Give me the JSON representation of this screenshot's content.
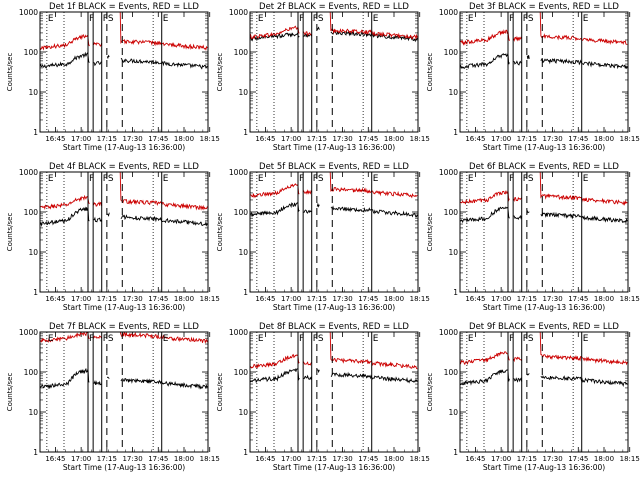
{
  "chart_data": [
    {
      "type": "line",
      "title": "Det 1f BLACK = Events, RED = LLD",
      "xlabel": "Start Time (17-Aug-13 16:36:00)",
      "ylabel": "Counts/sec",
      "yscale": "log",
      "ylim": [
        1,
        1000
      ],
      "xlim": [
        0,
        98
      ],
      "x_tick_labels": [
        "16:45",
        "17:00",
        "17:15",
        "17:30",
        "17:45",
        "18:00",
        "18:15"
      ],
      "y_tick_labels": [
        "1",
        "10",
        "100",
        "1000"
      ],
      "grid": false,
      "series": [
        {
          "name": "BLACK = Events",
          "color": "#000000",
          "base": 50,
          "peak": 85
        },
        {
          "name": "RED = LLD",
          "color": "#cc0000",
          "base": 150,
          "peak": 250
        }
      ],
      "markers": {
        "solid": [
          28,
          31,
          36,
          71
        ],
        "dotted": [
          4,
          14,
          66
        ],
        "dashed": [
          39,
          48
        ],
        "labels": [
          {
            "text": "E",
            "x": 4
          },
          {
            "text": "F",
            "x": 28
          },
          {
            "text": "F",
            "x": 36
          },
          {
            "text": "S",
            "x": 39
          },
          {
            "text": "E",
            "x": 71
          }
        ]
      }
    },
    {
      "type": "line",
      "title": "Det 2f BLACK = Events, RED = LLD",
      "xlabel": "Start Time (17-Aug-13 16:36:00)",
      "ylabel": "Counts/sec",
      "yscale": "log",
      "ylim": [
        1,
        1000
      ],
      "xlim": [
        0,
        98
      ],
      "x_tick_labels": [
        "16:45",
        "17:00",
        "17:15",
        "17:30",
        "17:45",
        "18:00",
        "18:15"
      ],
      "y_tick_labels": [
        "1",
        "10",
        "100",
        "1000"
      ],
      "grid": false,
      "series": [
        {
          "name": "BLACK = Events",
          "color": "#000000",
          "base": 250,
          "peak": 280
        },
        {
          "name": "RED = LLD",
          "color": "#cc0000",
          "base": 280,
          "peak": 400
        }
      ],
      "markers": {
        "solid": [
          28,
          31,
          36,
          71
        ],
        "dotted": [
          4,
          14,
          66
        ],
        "dashed": [
          39,
          48
        ],
        "labels": [
          {
            "text": "E",
            "x": 4
          },
          {
            "text": "F",
            "x": 28
          },
          {
            "text": "F",
            "x": 36
          },
          {
            "text": "S",
            "x": 39
          },
          {
            "text": "E",
            "x": 71
          }
        ]
      }
    },
    {
      "type": "line",
      "title": "Det 3f BLACK = Events, RED = LLD",
      "xlabel": "Start Time (17-Aug-13 16:36:00)",
      "ylabel": "Counts/sec",
      "yscale": "log",
      "ylim": [
        1,
        1000
      ],
      "xlim": [
        0,
        98
      ],
      "x_tick_labels": [
        "16:45",
        "17:00",
        "17:15",
        "17:30",
        "17:45",
        "18:00",
        "18:15"
      ],
      "y_tick_labels": [
        "1",
        "10",
        "100",
        "1000"
      ],
      "grid": false,
      "series": [
        {
          "name": "BLACK = Events",
          "color": "#000000",
          "base": 50,
          "peak": 85
        },
        {
          "name": "RED = LLD",
          "color": "#cc0000",
          "base": 200,
          "peak": 320
        }
      ],
      "markers": {
        "solid": [
          28,
          31,
          36,
          71
        ],
        "dotted": [
          4,
          14,
          66
        ],
        "dashed": [
          39,
          48
        ],
        "labels": [
          {
            "text": "E",
            "x": 4
          },
          {
            "text": "F",
            "x": 28
          },
          {
            "text": "F",
            "x": 36
          },
          {
            "text": "S",
            "x": 39
          },
          {
            "text": "E",
            "x": 71
          }
        ]
      }
    },
    {
      "type": "line",
      "title": "Det 4f BLACK = Events, RED = LLD",
      "xlabel": "Start Time (17-Aug-13 16:36:00)",
      "ylabel": "Counts/sec",
      "yscale": "log",
      "ylim": [
        1,
        1000
      ],
      "xlim": [
        0,
        98
      ],
      "x_tick_labels": [
        "16:45",
        "17:00",
        "17:15",
        "17:30",
        "17:45",
        "18:00",
        "18:15"
      ],
      "y_tick_labels": [
        "1",
        "10",
        "100",
        "1000"
      ],
      "grid": false,
      "series": [
        {
          "name": "BLACK = Events",
          "color": "#000000",
          "base": 60,
          "peak": 120
        },
        {
          "name": "RED = LLD",
          "color": "#cc0000",
          "base": 150,
          "peak": 230
        }
      ],
      "markers": {
        "solid": [
          28,
          31,
          36,
          71
        ],
        "dotted": [
          4,
          14,
          66
        ],
        "dashed": [
          39,
          48
        ],
        "labels": [
          {
            "text": "E",
            "x": 4
          },
          {
            "text": "F",
            "x": 28
          },
          {
            "text": "F",
            "x": 36
          },
          {
            "text": "S",
            "x": 39
          },
          {
            "text": "E",
            "x": 71
          }
        ]
      }
    },
    {
      "type": "line",
      "title": "Det 5f BLACK = Events, RED = LLD",
      "xlabel": "Start Time (17-Aug-13 16:36:00)",
      "ylabel": "Counts/sec",
      "yscale": "log",
      "ylim": [
        1,
        1000
      ],
      "xlim": [
        0,
        98
      ],
      "x_tick_labels": [
        "16:45",
        "17:00",
        "17:15",
        "17:30",
        "17:45",
        "18:00",
        "18:15"
      ],
      "y_tick_labels": [
        "1",
        "10",
        "100",
        "1000"
      ],
      "grid": false,
      "series": [
        {
          "name": "BLACK = Events",
          "color": "#000000",
          "base": 100,
          "peak": 160
        },
        {
          "name": "RED = LLD",
          "color": "#cc0000",
          "base": 300,
          "peak": 480
        }
      ],
      "markers": {
        "solid": [
          28,
          31,
          36,
          71
        ],
        "dotted": [
          4,
          14,
          66
        ],
        "dashed": [
          39,
          48
        ],
        "labels": [
          {
            "text": "E",
            "x": 4
          },
          {
            "text": "F",
            "x": 28
          },
          {
            "text": "F",
            "x": 36
          },
          {
            "text": "S",
            "x": 39
          },
          {
            "text": "E",
            "x": 71
          }
        ]
      }
    },
    {
      "type": "line",
      "title": "Det 6f BLACK = Events, RED = LLD",
      "xlabel": "Start Time (17-Aug-13 16:36:00)",
      "ylabel": "Counts/sec",
      "yscale": "log",
      "ylim": [
        1,
        1000
      ],
      "xlim": [
        0,
        98
      ],
      "x_tick_labels": [
        "16:45",
        "17:00",
        "17:15",
        "17:30",
        "17:45",
        "18:00",
        "18:15"
      ],
      "y_tick_labels": [
        "1",
        "10",
        "100",
        "1000"
      ],
      "grid": false,
      "series": [
        {
          "name": "BLACK = Events",
          "color": "#000000",
          "base": 70,
          "peak": 130
        },
        {
          "name": "RED = LLD",
          "color": "#cc0000",
          "base": 200,
          "peak": 320
        }
      ],
      "markers": {
        "solid": [
          28,
          31,
          36,
          71
        ],
        "dotted": [
          4,
          14,
          66
        ],
        "dashed": [
          39,
          48
        ],
        "labels": [
          {
            "text": "E",
            "x": 4
          },
          {
            "text": "F",
            "x": 28
          },
          {
            "text": "F",
            "x": 36
          },
          {
            "text": "S",
            "x": 39
          },
          {
            "text": "E",
            "x": 71
          }
        ]
      }
    },
    {
      "type": "line",
      "title": "Det 7f BLACK = Events, RED = LLD",
      "xlabel": "Start Time (17-Aug-13 16:36:00)",
      "ylabel": "Counts/sec",
      "yscale": "log",
      "ylim": [
        1,
        1000
      ],
      "xlim": [
        0,
        98
      ],
      "x_tick_labels": [
        "16:45",
        "17:00",
        "17:15",
        "17:30",
        "17:45",
        "18:00",
        "18:15"
      ],
      "y_tick_labels": [
        "1",
        "10",
        "100",
        "1000"
      ],
      "grid": false,
      "series": [
        {
          "name": "BLACK = Events",
          "color": "#000000",
          "base": 50,
          "peak": 110
        },
        {
          "name": "RED = LLD",
          "color": "#cc0000",
          "base": 700,
          "peak": 900
        }
      ],
      "markers": {
        "solid": [
          28,
          31,
          36,
          71
        ],
        "dotted": [
          4,
          14,
          66
        ],
        "dashed": [
          39,
          48
        ],
        "labels": [
          {
            "text": "E",
            "x": 4
          },
          {
            "text": "F",
            "x": 28
          },
          {
            "text": "F",
            "x": 36
          },
          {
            "text": "S",
            "x": 39
          },
          {
            "text": "E",
            "x": 71
          }
        ]
      }
    },
    {
      "type": "line",
      "title": "Det 8f BLACK = Events, RED = LLD",
      "xlabel": "Start Time (17-Aug-13 16:36:00)",
      "ylabel": "Counts/sec",
      "yscale": "log",
      "ylim": [
        1,
        1000
      ],
      "xlim": [
        0,
        98
      ],
      "x_tick_labels": [
        "16:45",
        "17:00",
        "17:15",
        "17:30",
        "17:45",
        "18:00",
        "18:15"
      ],
      "y_tick_labels": [
        "1",
        "10",
        "100",
        "1000"
      ],
      "grid": false,
      "series": [
        {
          "name": "BLACK = Events",
          "color": "#000000",
          "base": 70,
          "peak": 110
        },
        {
          "name": "RED = LLD",
          "color": "#cc0000",
          "base": 160,
          "peak": 260
        }
      ],
      "markers": {
        "solid": [
          28,
          31,
          36,
          71
        ],
        "dotted": [
          4,
          14,
          66
        ],
        "dashed": [
          39,
          48
        ],
        "labels": [
          {
            "text": "E",
            "x": 4
          },
          {
            "text": "F",
            "x": 28
          },
          {
            "text": "F",
            "x": 36
          },
          {
            "text": "S",
            "x": 39
          },
          {
            "text": "E",
            "x": 71
          }
        ]
      }
    },
    {
      "type": "line",
      "title": "Det 9f BLACK = Events, RED = LLD",
      "xlabel": "Start Time (17-Aug-13 16:36:00)",
      "ylabel": "Counts/sec",
      "yscale": "log",
      "ylim": [
        1,
        1000
      ],
      "xlim": [
        0,
        98
      ],
      "x_tick_labels": [
        "16:45",
        "17:00",
        "17:15",
        "17:30",
        "17:45",
        "18:00",
        "18:15"
      ],
      "y_tick_labels": [
        "1",
        "10",
        "100",
        "1000"
      ],
      "grid": false,
      "series": [
        {
          "name": "BLACK = Events",
          "color": "#000000",
          "base": 60,
          "peak": 110
        },
        {
          "name": "RED = LLD",
          "color": "#cc0000",
          "base": 200,
          "peak": 300
        }
      ],
      "markers": {
        "solid": [
          28,
          31,
          36,
          71
        ],
        "dotted": [
          4,
          14,
          66
        ],
        "dashed": [
          39,
          48
        ],
        "labels": [
          {
            "text": "E",
            "x": 4
          },
          {
            "text": "F",
            "x": 28
          },
          {
            "text": "F",
            "x": 36
          },
          {
            "text": "S",
            "x": 39
          },
          {
            "text": "E",
            "x": 71
          }
        ]
      }
    }
  ]
}
